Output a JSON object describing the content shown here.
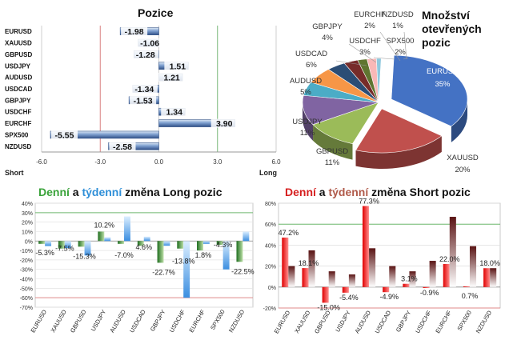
{
  "positions_chart": {
    "title": "Pozice",
    "xlabel_left": "Short",
    "xlabel_right": "Long",
    "type": "bar",
    "xlim": [
      -6.0,
      6.0
    ],
    "ticks": [
      "-6.0",
      "-3.0",
      "0.0",
      "3.0",
      "6.0"
    ],
    "categories": [
      "EURUSD",
      "XAUUSD",
      "GBPUSD",
      "USDJPY",
      "AUDUSD",
      "USDCAD",
      "GBPJPY",
      "USDCHF",
      "EURCHF",
      "SPX500",
      "NZDUSD"
    ],
    "values": [
      -1.98,
      -1.06,
      -1.28,
      1.51,
      1.21,
      -1.34,
      -1.53,
      1.34,
      3.9,
      -5.55,
      -2.58
    ],
    "labels": [
      "-1.98",
      "-1.06",
      "-1.28",
      "1.51",
      "1.21",
      "-1.34",
      "-1.53",
      "1.34",
      "3.90",
      "-5.55",
      "-2.58"
    ]
  },
  "pie_chart": {
    "title_line1": "Množství",
    "title_line2": "otevřených",
    "title_line3": "pozic",
    "type": "pie",
    "slices": [
      {
        "name": "EURUSD",
        "pct": "35%",
        "value": 35,
        "color": "#4472c4"
      },
      {
        "name": "XAUUSD",
        "pct": "20%",
        "value": 20,
        "color": "#c0504d"
      },
      {
        "name": "GBPUSD",
        "pct": "11%",
        "value": 11,
        "color": "#9bbb59"
      },
      {
        "name": "USDJPY",
        "pct": "11%",
        "value": 11,
        "color": "#8064a2"
      },
      {
        "name": "AUDUSD",
        "pct": "5%",
        "value": 5,
        "color": "#4bacc6"
      },
      {
        "name": "USDCAD",
        "pct": "6%",
        "value": 6,
        "color": "#f79646"
      },
      {
        "name": "GBPJPY",
        "pct": "4%",
        "value": 4,
        "color": "#2c4d75"
      },
      {
        "name": "USDCHF",
        "pct": "3%",
        "value": 3,
        "color": "#772c2a"
      },
      {
        "name": "EURCHF",
        "pct": "2%",
        "value": 2,
        "color": "#5f7530"
      },
      {
        "name": "SPX500",
        "pct": "2%",
        "value": 2,
        "color": "#f9b8b7"
      },
      {
        "name": "NZDUSD",
        "pct": "1%",
        "value": 1,
        "color": "#8ec8dd"
      }
    ]
  },
  "long_change_chart": {
    "title_daily": "Denní",
    "title_and": "a",
    "title_weekly": "týdenní",
    "title_rest": "změna Long pozic",
    "type": "bar",
    "ylim": [
      -70,
      40
    ],
    "yticks": [
      "40%",
      "30%",
      "20%",
      "10%",
      "0%",
      "-10%",
      "-20%",
      "-30%",
      "-40%",
      "-50%",
      "-60%",
      "-70%"
    ],
    "categories": [
      "EURUSD",
      "XAUUSD",
      "GBPUSD",
      "USDJPY",
      "AUDUSD",
      "USDCAD",
      "GBPJPY",
      "USDCHF",
      "EURCHF",
      "SPX500",
      "NZDUSD"
    ],
    "daily": [
      -3,
      -8,
      -6,
      10,
      -3,
      -5,
      -23,
      -8,
      -10,
      -4,
      -22
    ],
    "weekly": [
      -5.3,
      -7.5,
      -15.3,
      4,
      26,
      4.6,
      -5,
      -60,
      -3,
      -30,
      10
    ],
    "labels": [
      "-5.3%",
      "-7.5%",
      "-15.3%",
      "10.2%",
      "-7.0%",
      "4.6%",
      "-22.7%",
      "-13.8%",
      "1.8%",
      "-4.3%",
      "-22.5%"
    ]
  },
  "short_change_chart": {
    "title_daily": "Denní",
    "title_and": "a",
    "title_weekly": "týdenní",
    "title_rest": "změna Short pozic",
    "type": "bar",
    "ylim": [
      -20,
      80
    ],
    "yticks": [
      "80%",
      "60%",
      "40%",
      "20%",
      "0%",
      "-20%"
    ],
    "categories": [
      "EURUSD",
      "XAUUSD",
      "GBPUSD",
      "USDJPY",
      "AUDUSD",
      "USDCAD",
      "GBPJPY",
      "USDCHF",
      "EURCHF",
      "SPX500",
      "NZDUSD"
    ],
    "daily": [
      47.2,
      18.1,
      -15.0,
      -5.4,
      77.3,
      -4.9,
      3.1,
      -0.9,
      22.0,
      0.7,
      18.0
    ],
    "weekly": [
      20,
      35,
      15,
      12,
      37,
      20,
      15,
      25,
      67,
      39,
      18
    ],
    "labels": [
      "47.2%",
      "18.1%",
      "-15.0%",
      "-5.4%",
      "77.3%",
      "-4.9%",
      "3.1%",
      "-0.9%",
      "22.0%",
      "0.7%",
      "18.0%"
    ]
  }
}
